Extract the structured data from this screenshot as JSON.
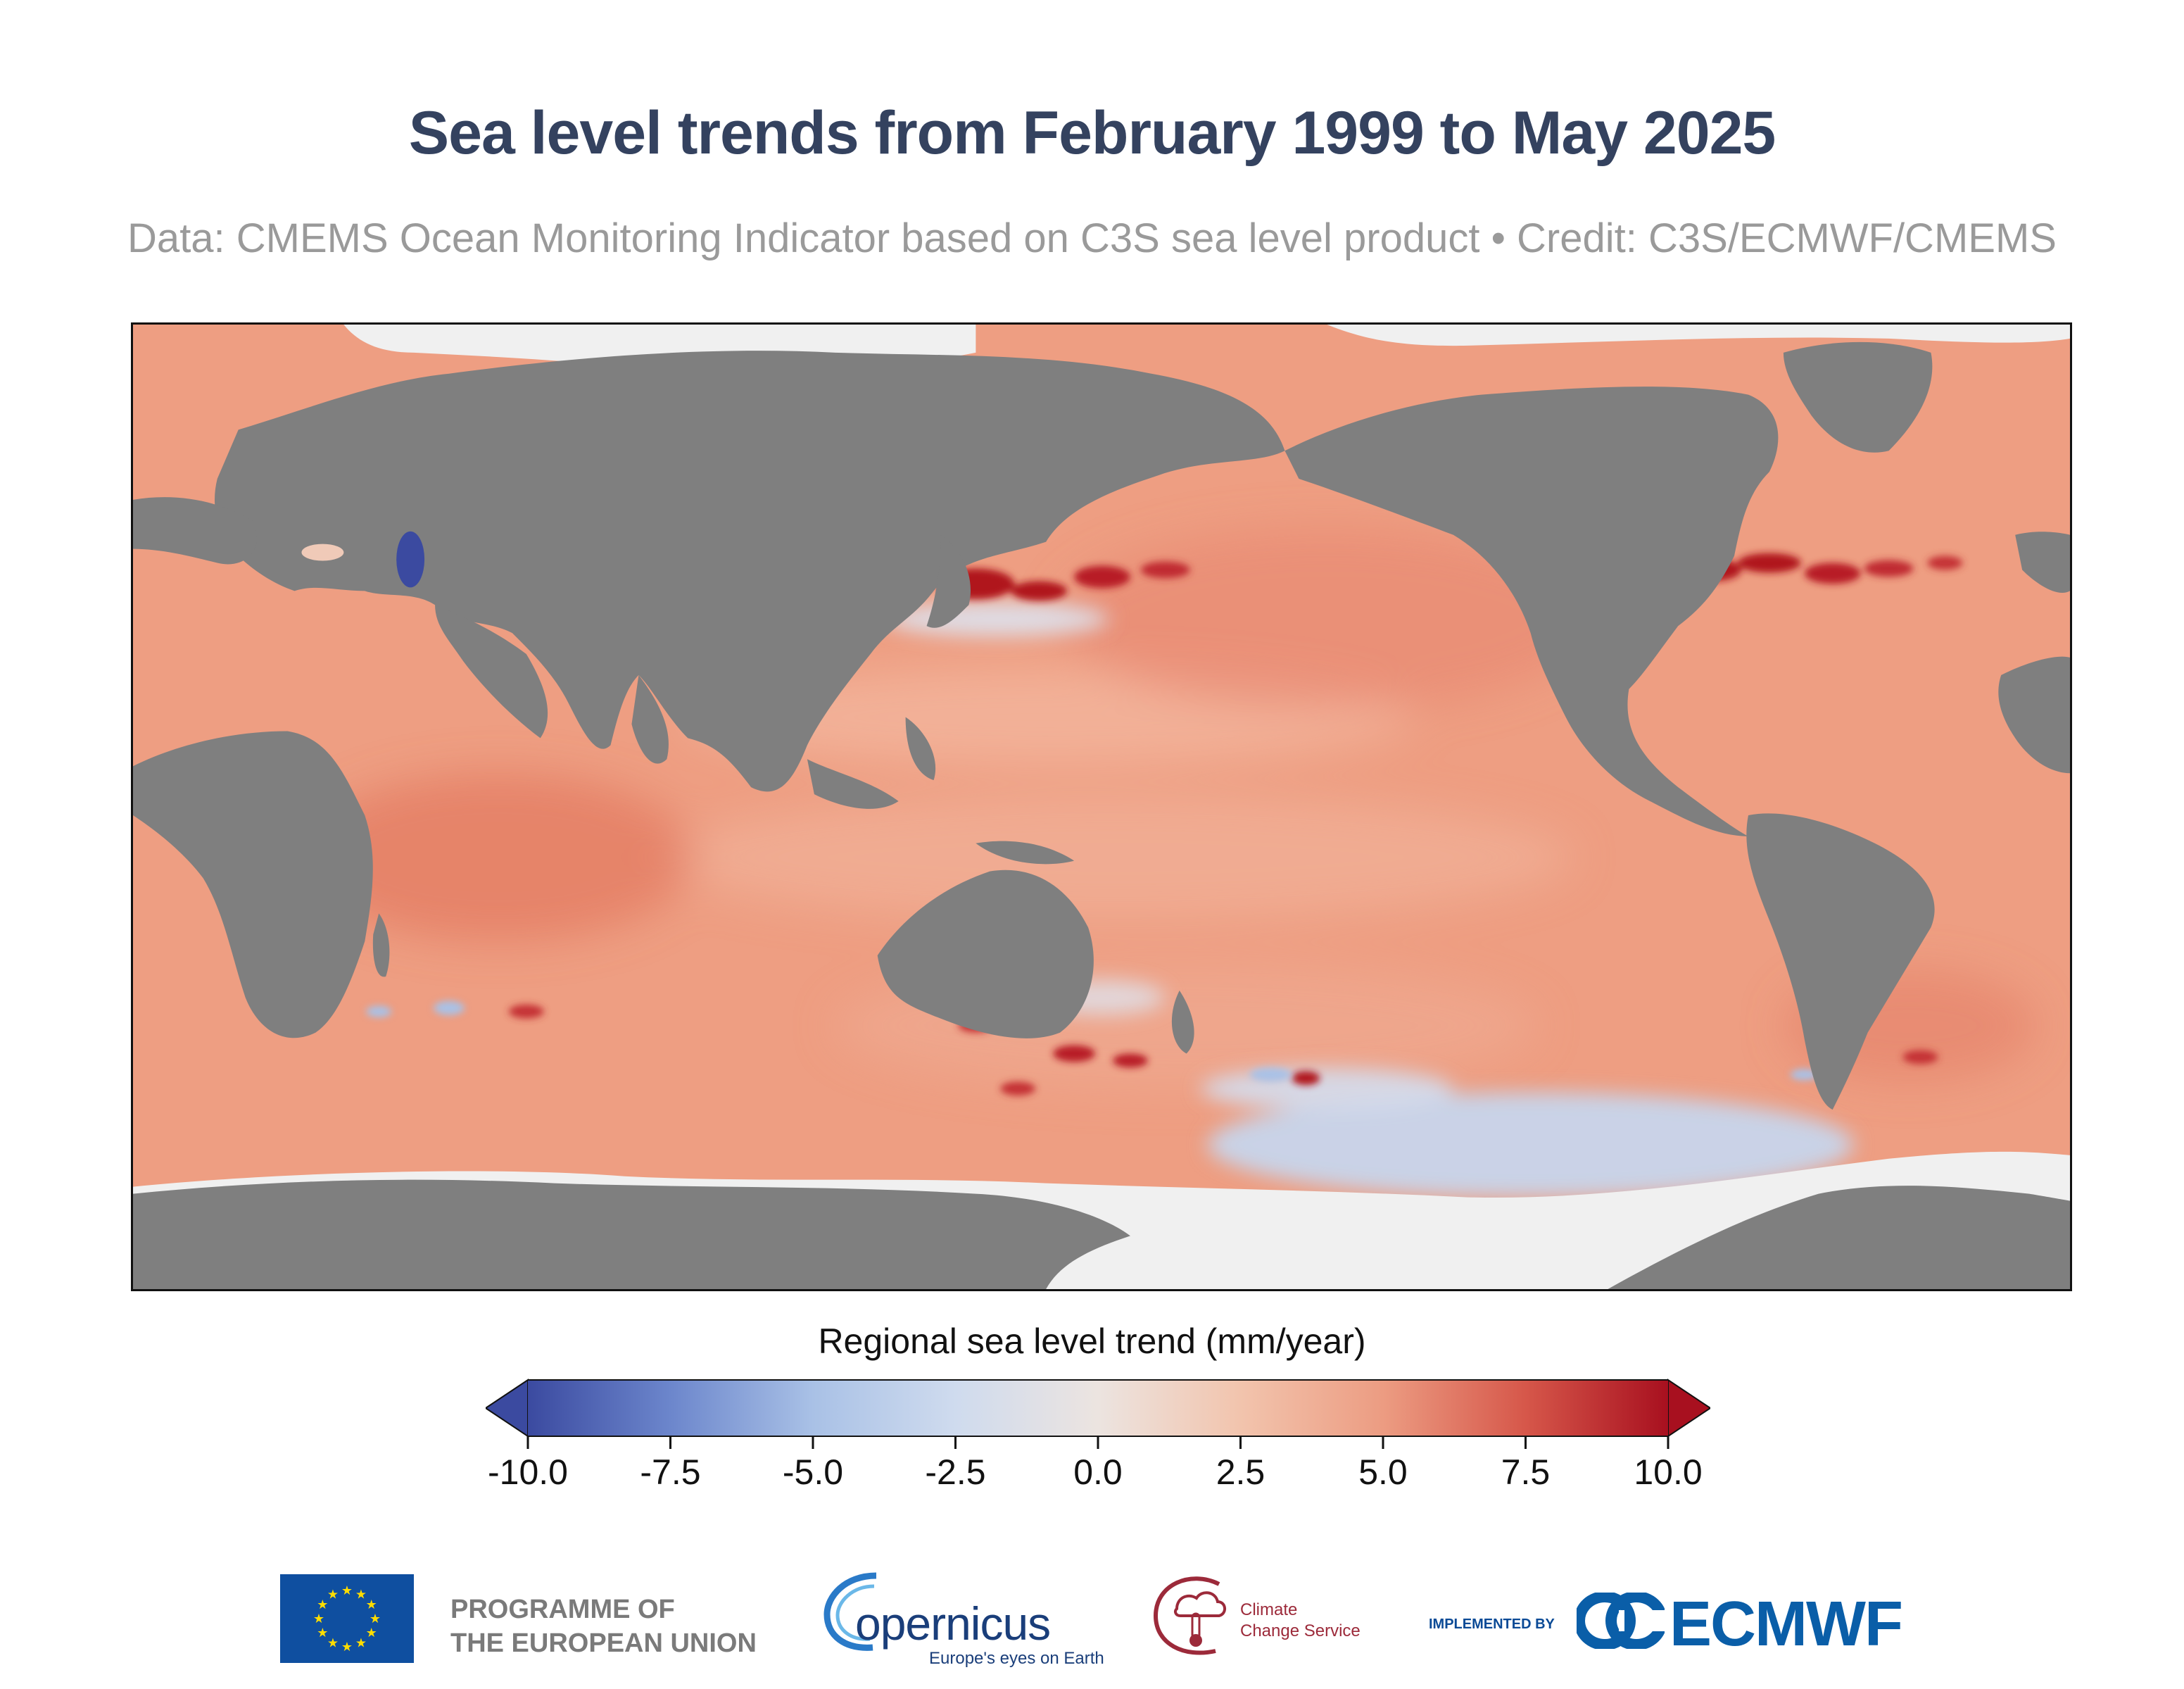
{
  "title": "Sea level trends from February 1999 to May 2025",
  "subtitle": "Data: CMEMS Ocean Monitoring Indicator based on C3S sea level product • Credit: C3S/ECMWF/CMEMS",
  "colorbar": {
    "label": "Regional sea level trend (mm/year)",
    "min": -10.0,
    "max": 10.0,
    "ticks": [
      "-10.0",
      "-7.5",
      "-5.0",
      "-2.5",
      "0.0",
      "2.5",
      "5.0",
      "7.5",
      "10.0"
    ],
    "colors": [
      "#3b4aa0",
      "#6c86cc",
      "#a9c1e6",
      "#dde3ee",
      "#f2cdb8",
      "#ec9c82",
      "#dd6a52",
      "#c43036",
      "#a8101f"
    ]
  },
  "logos": {
    "programme": "PROGRAMME OF\nTHE EUROPEAN UNION",
    "copernicus": "opernicus",
    "copernicus_tagline": "Europe's eyes on Earth",
    "c3s": "Climate\nChange Service",
    "implemented_by": "IMPLEMENTED BY",
    "ecmwf": "ECMWF"
  },
  "map_colors": {
    "ocean": "#ee9e82",
    "land": "#7f7f7f",
    "ice": "#f0f0f0",
    "high": "#b81a26",
    "low": "#c6d6ee"
  }
}
